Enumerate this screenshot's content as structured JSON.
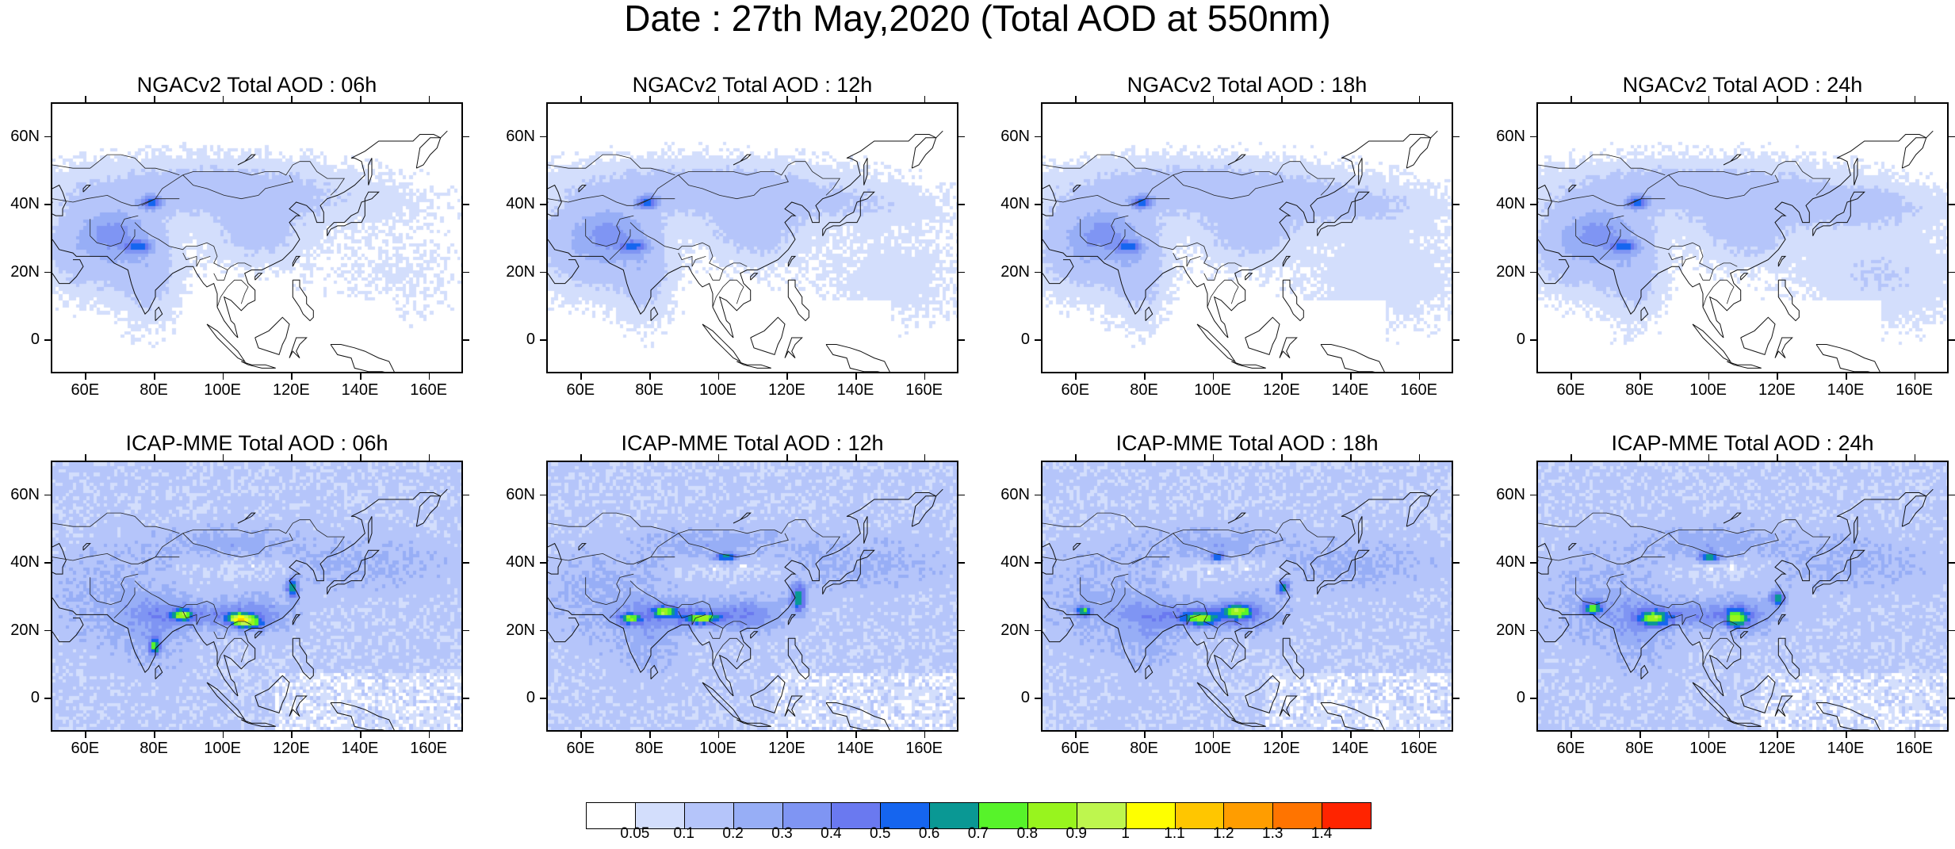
{
  "title": "Date : 27th May,2020 (Total AOD at 550nm)",
  "panels": [
    {
      "title": "NGACv2 Total AOD : 06h",
      "model": "NGACv2",
      "hour": "06h"
    },
    {
      "title": "NGACv2 Total AOD : 12h",
      "model": "NGACv2",
      "hour": "12h"
    },
    {
      "title": "NGACv2 Total AOD : 18h",
      "model": "NGACv2",
      "hour": "18h"
    },
    {
      "title": "NGACv2 Total AOD : 24h",
      "model": "NGACv2",
      "hour": "24h"
    },
    {
      "title": "ICAP-MME Total AOD : 06h",
      "model": "ICAP-MME",
      "hour": "06h"
    },
    {
      "title": "ICAP-MME Total AOD : 12h",
      "model": "ICAP-MME",
      "hour": "12h"
    },
    {
      "title": "ICAP-MME Total AOD : 18h",
      "model": "ICAP-MME",
      "hour": "18h"
    },
    {
      "title": "ICAP-MME Total AOD : 24h",
      "model": "ICAP-MME",
      "hour": "24h"
    }
  ],
  "axes": {
    "x_ticks": [
      "60E",
      "80E",
      "100E",
      "120E",
      "140E",
      "160E"
    ],
    "x_tick_values": [
      60,
      80,
      100,
      120,
      140,
      160
    ],
    "x_range": [
      50,
      170
    ],
    "y_ticks": [
      "60N",
      "40N",
      "20N",
      "0"
    ],
    "y_tick_values": [
      60,
      40,
      20,
      0
    ],
    "y_range": [
      -10,
      70
    ]
  },
  "colorbar": {
    "labels": [
      "0.05",
      "0.1",
      "0.2",
      "0.3",
      "0.4",
      "0.5",
      "0.6",
      "0.7",
      "0.8",
      "0.9",
      "1",
      "1.1",
      "1.2",
      "1.3",
      "1.4"
    ],
    "colors": [
      "#ffffff",
      "#d3defc",
      "#b5c5fa",
      "#97aef6",
      "#7f95f3",
      "#6a79f0",
      "#1565ef",
      "#0a9894",
      "#57f32a",
      "#98f41e",
      "#bef64e",
      "#feff00",
      "#ffc600",
      "#ff9d00",
      "#ff7400",
      "#ff2400"
    ]
  }
}
